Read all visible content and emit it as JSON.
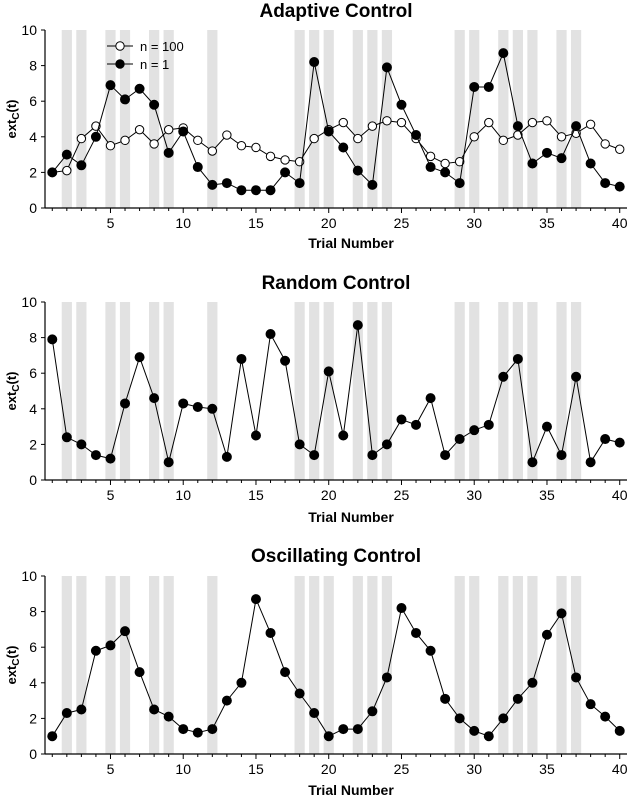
{
  "chart_data": [
    {
      "type": "line",
      "title": "Adaptive Control",
      "xlabel": "Trial Number",
      "ylabel": "ext",
      "ylabel_sub": "C",
      "ylabel_tail": "(t)",
      "xlim": [
        0.5,
        40.5
      ],
      "ylim": [
        0,
        10
      ],
      "xticks": [
        5,
        10,
        15,
        20,
        25,
        30,
        35,
        40
      ],
      "yticks": [
        0,
        2,
        4,
        6,
        8,
        10
      ],
      "shaded_trials": [
        2,
        3,
        5,
        6,
        8,
        9,
        12,
        18,
        19,
        20,
        22,
        23,
        24,
        29,
        30,
        32,
        33,
        34,
        36,
        37
      ],
      "legend_position": "top-left",
      "series": [
        {
          "name": "n = 100",
          "marker": "open-circle",
          "x": [
            1,
            2,
            3,
            4,
            5,
            6,
            7,
            8,
            9,
            10,
            11,
            12,
            13,
            14,
            15,
            16,
            17,
            18,
            19,
            20,
            21,
            22,
            23,
            24,
            25,
            26,
            27,
            28,
            29,
            30,
            31,
            32,
            33,
            34,
            35,
            36,
            37,
            38,
            39,
            40
          ],
          "values": [
            2.0,
            2.1,
            3.9,
            4.6,
            3.5,
            3.8,
            4.4,
            3.6,
            4.4,
            4.5,
            3.8,
            3.2,
            4.1,
            3.5,
            3.4,
            2.9,
            2.7,
            2.6,
            3.9,
            4.4,
            4.8,
            3.9,
            4.6,
            4.9,
            4.8,
            3.9,
            2.9,
            2.5,
            2.6,
            4.0,
            4.8,
            3.8,
            4.1,
            4.8,
            4.9,
            4.0,
            4.2,
            4.7,
            3.6,
            3.3
          ]
        },
        {
          "name": "n = 1",
          "marker": "filled-circle",
          "x": [
            1,
            2,
            3,
            4,
            5,
            6,
            7,
            8,
            9,
            10,
            11,
            12,
            13,
            14,
            15,
            16,
            17,
            18,
            19,
            20,
            21,
            22,
            23,
            24,
            25,
            26,
            27,
            28,
            29,
            30,
            31,
            32,
            33,
            34,
            35,
            36,
            37,
            38,
            39,
            40
          ],
          "values": [
            2.0,
            3.0,
            2.4,
            4.0,
            6.9,
            6.1,
            6.7,
            5.8,
            3.1,
            4.3,
            2.3,
            1.3,
            1.4,
            1.0,
            1.0,
            1.0,
            2.0,
            1.4,
            8.2,
            4.3,
            3.4,
            2.1,
            1.3,
            7.9,
            5.8,
            4.1,
            2.3,
            2.0,
            1.4,
            6.8,
            6.8,
            8.7,
            4.6,
            2.5,
            3.1,
            2.8,
            4.6,
            2.5,
            1.4,
            1.2
          ]
        }
      ]
    },
    {
      "type": "line",
      "title": "Random Control",
      "xlabel": "Trial Number",
      "ylabel": "ext",
      "ylabel_sub": "C",
      "ylabel_tail": "(t)",
      "xlim": [
        0.5,
        40.5
      ],
      "ylim": [
        0,
        10
      ],
      "xticks": [
        5,
        10,
        15,
        20,
        25,
        30,
        35,
        40
      ],
      "yticks": [
        0,
        2,
        4,
        6,
        8,
        10
      ],
      "shaded_trials": [
        2,
        3,
        5,
        6,
        8,
        9,
        12,
        18,
        19,
        20,
        22,
        23,
        24,
        29,
        30,
        32,
        33,
        34,
        36,
        37
      ],
      "series": [
        {
          "name": "n = 1",
          "marker": "filled-circle",
          "x": [
            1,
            2,
            3,
            4,
            5,
            6,
            7,
            8,
            9,
            10,
            11,
            12,
            13,
            14,
            15,
            16,
            17,
            18,
            19,
            20,
            21,
            22,
            23,
            24,
            25,
            26,
            27,
            28,
            29,
            30,
            31,
            32,
            33,
            34,
            35,
            36,
            37,
            38,
            39,
            40
          ],
          "values": [
            7.9,
            2.4,
            2.0,
            1.4,
            1.2,
            4.3,
            6.9,
            4.6,
            1.0,
            4.3,
            4.1,
            4.0,
            1.3,
            6.8,
            2.5,
            8.2,
            6.7,
            2.0,
            1.4,
            6.1,
            2.5,
            8.7,
            1.4,
            2.0,
            3.4,
            3.1,
            4.6,
            1.4,
            2.3,
            2.8,
            3.1,
            5.8,
            6.8,
            1.0,
            3.0,
            1.4,
            5.8,
            1.0,
            2.3,
            2.1
          ]
        }
      ]
    },
    {
      "type": "line",
      "title": "Oscillating Control",
      "xlabel": "Trial Number",
      "ylabel": "ext",
      "ylabel_sub": "C",
      "ylabel_tail": "(t)",
      "xlim": [
        0.5,
        40.5
      ],
      "ylim": [
        0,
        10
      ],
      "xticks": [
        5,
        10,
        15,
        20,
        25,
        30,
        35,
        40
      ],
      "yticks": [
        0,
        2,
        4,
        6,
        8,
        10
      ],
      "shaded_trials": [
        2,
        3,
        5,
        6,
        8,
        9,
        12,
        18,
        19,
        20,
        22,
        23,
        24,
        29,
        30,
        32,
        33,
        34,
        36,
        37
      ],
      "series": [
        {
          "name": "n = 1",
          "marker": "filled-circle",
          "x": [
            1,
            2,
            3,
            4,
            5,
            6,
            7,
            8,
            9,
            10,
            11,
            12,
            13,
            14,
            15,
            16,
            17,
            18,
            19,
            20,
            21,
            22,
            23,
            24,
            25,
            26,
            27,
            28,
            29,
            30,
            31,
            32,
            33,
            34,
            35,
            36,
            37,
            38,
            39,
            40
          ],
          "values": [
            1.0,
            2.3,
            2.5,
            5.8,
            6.1,
            6.9,
            4.6,
            2.5,
            2.1,
            1.4,
            1.2,
            1.4,
            3.0,
            4.0,
            8.7,
            6.8,
            4.6,
            3.4,
            2.3,
            1.0,
            1.4,
            1.4,
            2.4,
            4.3,
            8.2,
            6.8,
            5.8,
            3.1,
            2.0,
            1.3,
            1.0,
            2.0,
            3.1,
            4.0,
            6.7,
            7.9,
            4.3,
            2.8,
            2.1,
            1.3
          ]
        }
      ]
    }
  ]
}
